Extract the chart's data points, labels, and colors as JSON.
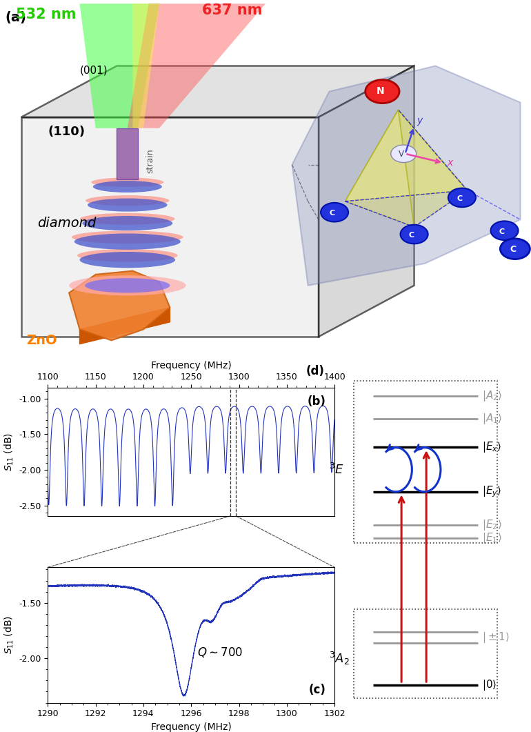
{
  "freq_b_min": 1100,
  "freq_b_max": 1400,
  "freq_b_ticks": [
    1100,
    1150,
    1200,
    1250,
    1300,
    1350,
    1400
  ],
  "freq_b_xlabel": "Frequency (MHz)",
  "s11_b_ticks": [
    -1.0,
    -1.5,
    -2.0,
    -2.5
  ],
  "s11_b_ylabel": "S11 (dB)",
  "dashed_line1": 1291,
  "dashed_line2": 1297,
  "freq_c_min": 1290,
  "freq_c_max": 1302,
  "freq_c_ticks": [
    1290,
    1292,
    1294,
    1296,
    1298,
    1300,
    1302
  ],
  "freq_c_xlabel": "Frequency (MHz)",
  "s11_c_ticks": [
    -1.5,
    -2.0
  ],
  "plot_color_blue": "#2233BB",
  "plot_color_red": "#CC2222",
  "laser_green": "532 nm",
  "laser_red": "637 nm",
  "zno_label": "ZnO",
  "diamond_label": "diamond",
  "strain_label": "strain"
}
